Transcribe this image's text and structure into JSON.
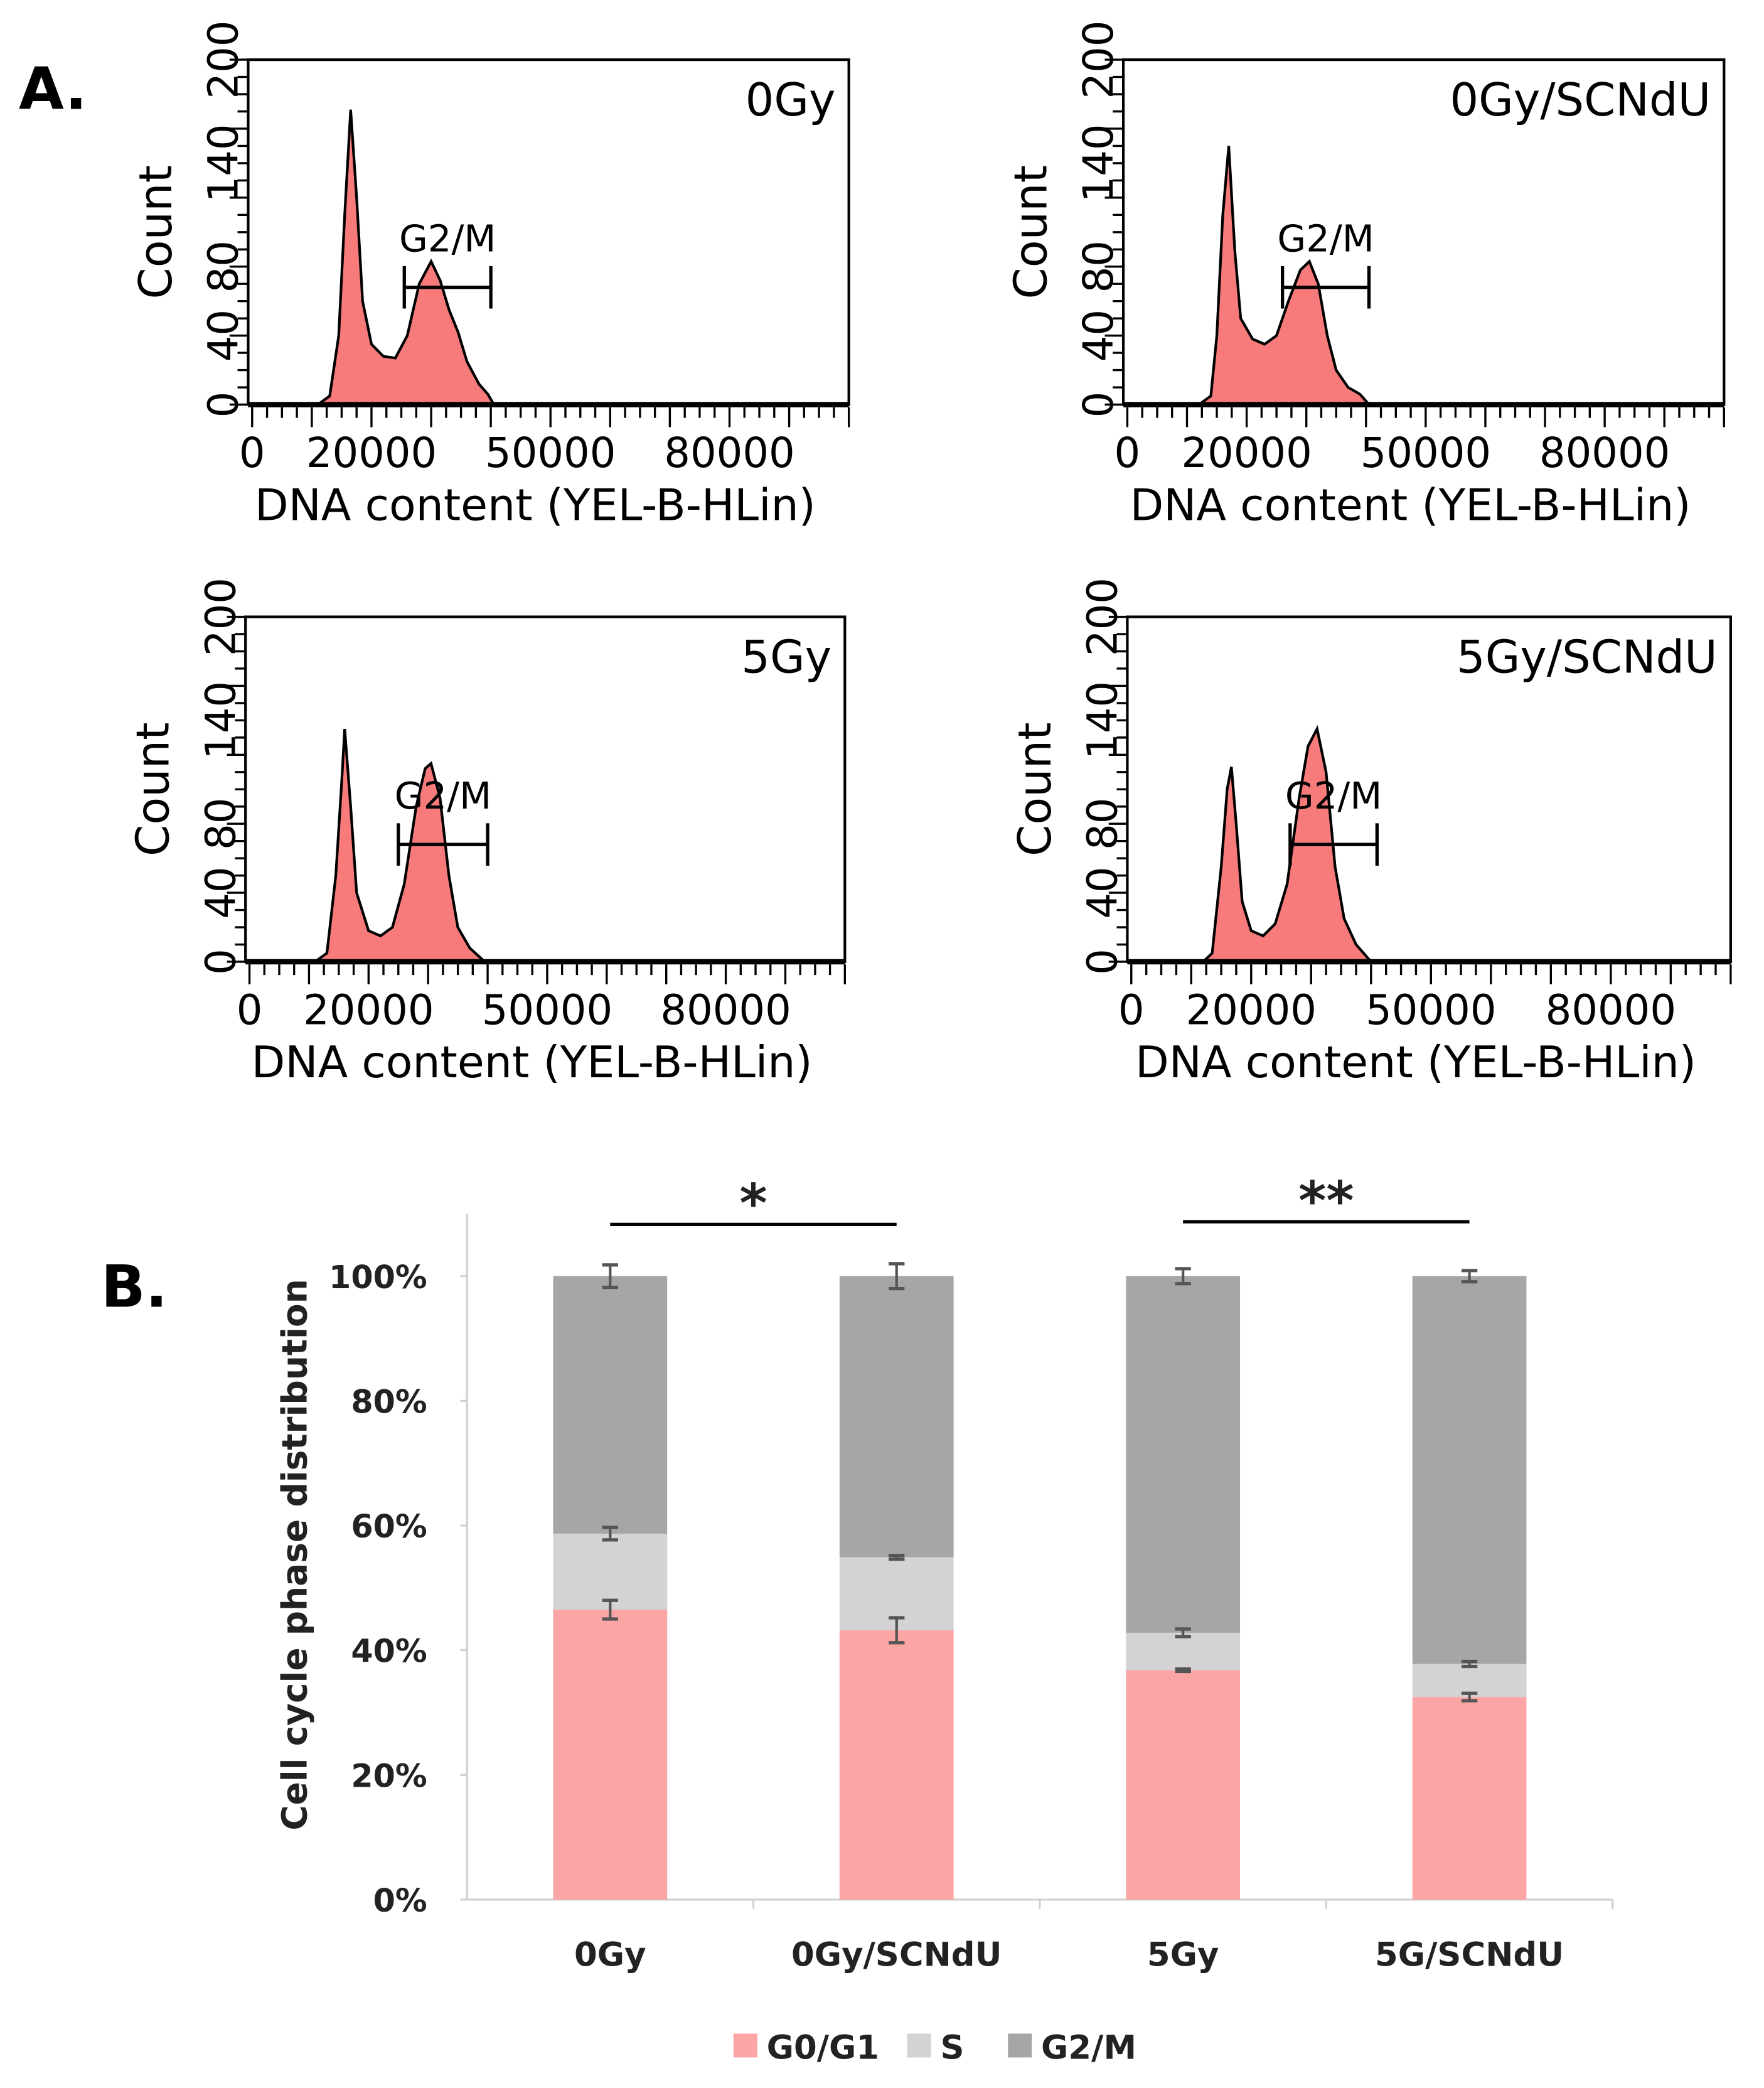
{
  "panel_labels": {
    "a": "A.",
    "b": "B."
  },
  "chart_data": [
    {
      "type": "area",
      "title": "0Gy",
      "xlabel": "DNA content (YEL-B-HLin)",
      "ylabel": "Count",
      "xlim": [
        0,
        100000
      ],
      "ylim": [
        0,
        200
      ],
      "xticks": [
        0,
        20000,
        50000,
        80000
      ],
      "yticks": [
        0,
        40,
        80,
        140,
        200
      ],
      "gate": {
        "label": "G2/M",
        "x": [
          25500,
          40000
        ],
        "y": 68
      },
      "points": [
        [
          11000,
          0
        ],
        [
          13000,
          5
        ],
        [
          14500,
          40
        ],
        [
          15500,
          110
        ],
        [
          16500,
          171
        ],
        [
          17500,
          120
        ],
        [
          18500,
          60
        ],
        [
          20000,
          35
        ],
        [
          22000,
          28
        ],
        [
          24000,
          27
        ],
        [
          26000,
          40
        ],
        [
          28000,
          70
        ],
        [
          30000,
          83
        ],
        [
          31500,
          72
        ],
        [
          33000,
          55
        ],
        [
          34500,
          42
        ],
        [
          36000,
          25
        ],
        [
          38000,
          12
        ],
        [
          39500,
          6
        ],
        [
          40500,
          0
        ]
      ]
    },
    {
      "type": "area",
      "title": "0Gy/SCNdU",
      "xlabel": "DNA content (YEL-B-HLin)",
      "ylabel": "Count",
      "xlim": [
        0,
        100000
      ],
      "ylim": [
        0,
        200
      ],
      "xticks": [
        0,
        20000,
        50000,
        80000
      ],
      "yticks": [
        0,
        40,
        80,
        140,
        200
      ],
      "gate": {
        "label": "G2/M",
        "x": [
          26000,
          40500
        ],
        "y": 68
      },
      "points": [
        [
          12000,
          0
        ],
        [
          14000,
          5
        ],
        [
          15000,
          40
        ],
        [
          16000,
          110
        ],
        [
          17000,
          150
        ],
        [
          18000,
          90
        ],
        [
          19000,
          50
        ],
        [
          21000,
          38
        ],
        [
          23000,
          35
        ],
        [
          25000,
          40
        ],
        [
          27000,
          60
        ],
        [
          29000,
          78
        ],
        [
          30500,
          83
        ],
        [
          32000,
          70
        ],
        [
          33500,
          40
        ],
        [
          35000,
          20
        ],
        [
          37000,
          10
        ],
        [
          39000,
          6
        ],
        [
          40500,
          0
        ]
      ]
    },
    {
      "type": "area",
      "title": "5Gy",
      "xlabel": "DNA content (YEL-B-HLin)",
      "ylabel": "Count",
      "xlim": [
        0,
        100000
      ],
      "ylim": [
        0,
        200
      ],
      "xticks": [
        0,
        20000,
        50000,
        80000
      ],
      "yticks": [
        0,
        40,
        80,
        140,
        200
      ],
      "gate": {
        "label": "G2/M",
        "x": [
          25000,
          40000
        ],
        "y": 68
      },
      "points": [
        [
          11000,
          0
        ],
        [
          13000,
          5
        ],
        [
          14500,
          50
        ],
        [
          15500,
          105
        ],
        [
          16000,
          135
        ],
        [
          17000,
          90
        ],
        [
          18000,
          40
        ],
        [
          20000,
          18
        ],
        [
          22000,
          15
        ],
        [
          24000,
          20
        ],
        [
          26000,
          45
        ],
        [
          28000,
          90
        ],
        [
          29500,
          112
        ],
        [
          30500,
          115
        ],
        [
          32000,
          95
        ],
        [
          33500,
          50
        ],
        [
          35000,
          20
        ],
        [
          37000,
          8
        ],
        [
          39500,
          0
        ]
      ]
    },
    {
      "type": "area",
      "title": "5Gy/SCNdU",
      "xlabel": "DNA content (YEL-B-HLin)",
      "ylabel": "Count",
      "xlim": [
        0,
        100000
      ],
      "ylim": [
        0,
        200
      ],
      "xticks": [
        0,
        20000,
        50000,
        80000
      ],
      "yticks": [
        0,
        40,
        80,
        140,
        200
      ],
      "gate": {
        "label": "G2/M",
        "x": [
          26500,
          41000
        ],
        "y": 68
      },
      "points": [
        [
          12000,
          0
        ],
        [
          13500,
          5
        ],
        [
          15000,
          55
        ],
        [
          16000,
          100
        ],
        [
          16700,
          113
        ],
        [
          17500,
          80
        ],
        [
          18500,
          35
        ],
        [
          20000,
          18
        ],
        [
          22000,
          15
        ],
        [
          24000,
          22
        ],
        [
          26000,
          45
        ],
        [
          28000,
          95
        ],
        [
          29500,
          125
        ],
        [
          31000,
          135
        ],
        [
          32500,
          110
        ],
        [
          34000,
          55
        ],
        [
          35500,
          25
        ],
        [
          37500,
          10
        ],
        [
          40000,
          0
        ]
      ]
    },
    {
      "type": "bar",
      "stacked": true,
      "ylabel": "Cell cycle phase distribution",
      "ylim": [
        0,
        100
      ],
      "yticks": [
        "0%",
        "20%",
        "40%",
        "60%",
        "80%",
        "100%"
      ],
      "categories": [
        "0Gy",
        "0Gy/SCNdU",
        "5Gy",
        "5G/SCNdU"
      ],
      "series": [
        {
          "name": "G0/G1",
          "color": "#fca5a5",
          "values": [
            46.5,
            43.2,
            36.8,
            32.5
          ],
          "errors": [
            1.5,
            2.0,
            0.2,
            0.6
          ]
        },
        {
          "name": "S",
          "color": "#d4d2d3",
          "values": [
            12.2,
            11.7,
            6.0,
            5.3
          ],
          "errors": [
            1.0,
            0.3,
            0.6,
            0.4
          ]
        },
        {
          "name": "G2/M",
          "color": "#a6a6a6",
          "values": [
            41.3,
            45.1,
            57.2,
            62.2
          ],
          "errors": [
            1.8,
            2.0,
            1.2,
            0.9
          ]
        }
      ],
      "significance": [
        {
          "from": 0,
          "to": 1,
          "label": "*"
        },
        {
          "from": 2,
          "to": 3,
          "label": "**"
        }
      ],
      "legend": "bottom"
    }
  ]
}
